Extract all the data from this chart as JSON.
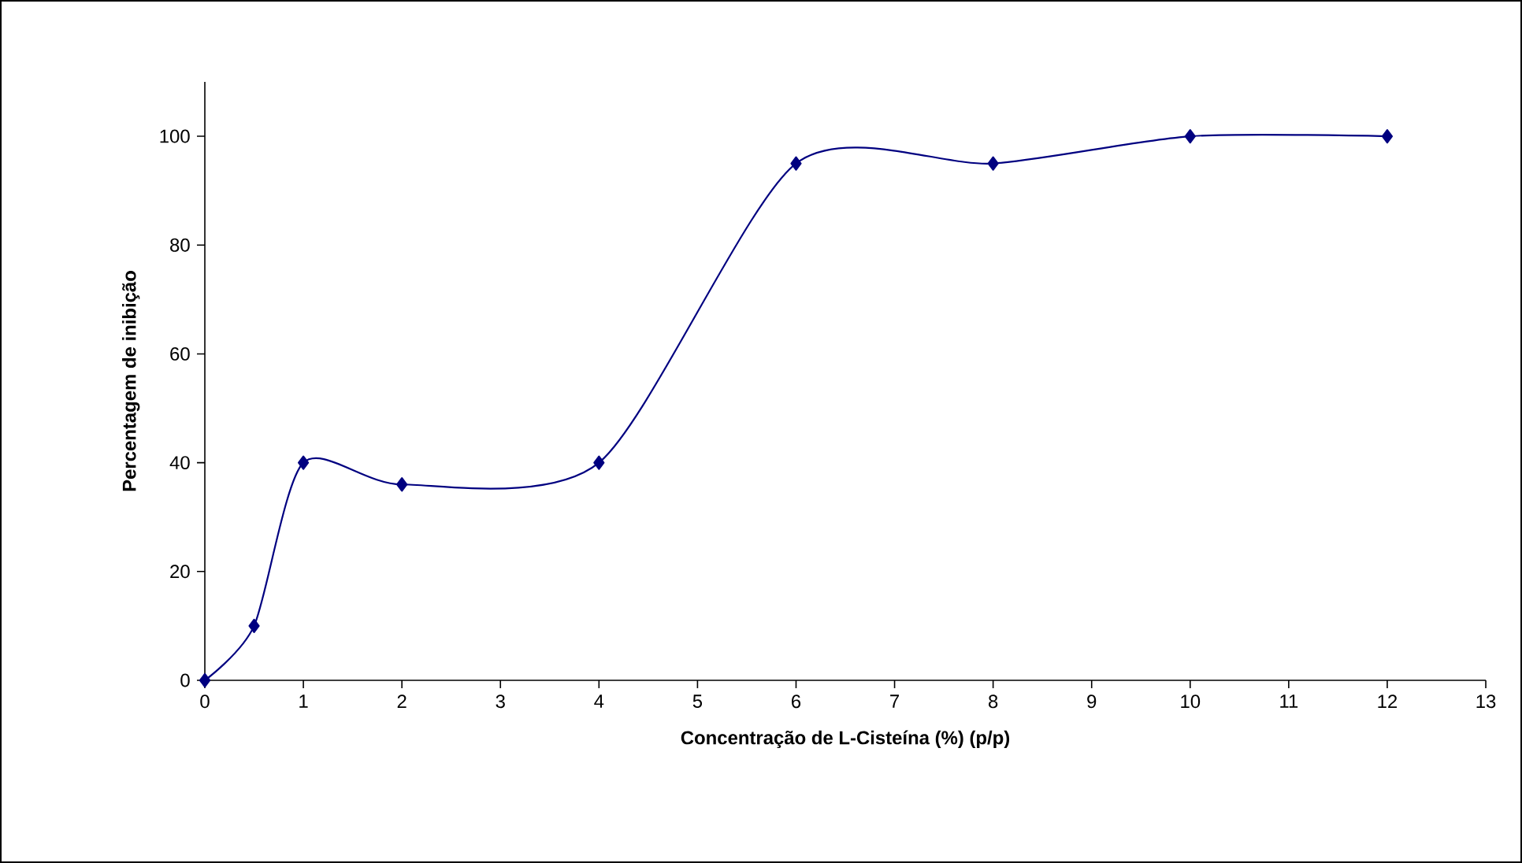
{
  "chart_data": {
    "type": "line",
    "xlabel": "Concentração de L-Cisteína (%) (p/p)",
    "ylabel": "Percentagem de inibição",
    "x": [
      0,
      0.5,
      1,
      2,
      4,
      6,
      8,
      10,
      12
    ],
    "series": [
      {
        "color": "#000080",
        "values": [
          0,
          10,
          40,
          36,
          40,
          95,
          95,
          100,
          100
        ]
      }
    ],
    "xlim": [
      0,
      13
    ],
    "xticks": [
      0,
      1,
      2,
      3,
      4,
      5,
      6,
      7,
      8,
      9,
      10,
      11,
      12,
      13
    ],
    "ylim": [
      0,
      110
    ],
    "yticks": [
      0,
      20,
      40,
      60,
      80,
      100
    ],
    "marker": "diamond",
    "line_style": "solid",
    "grid": false
  }
}
